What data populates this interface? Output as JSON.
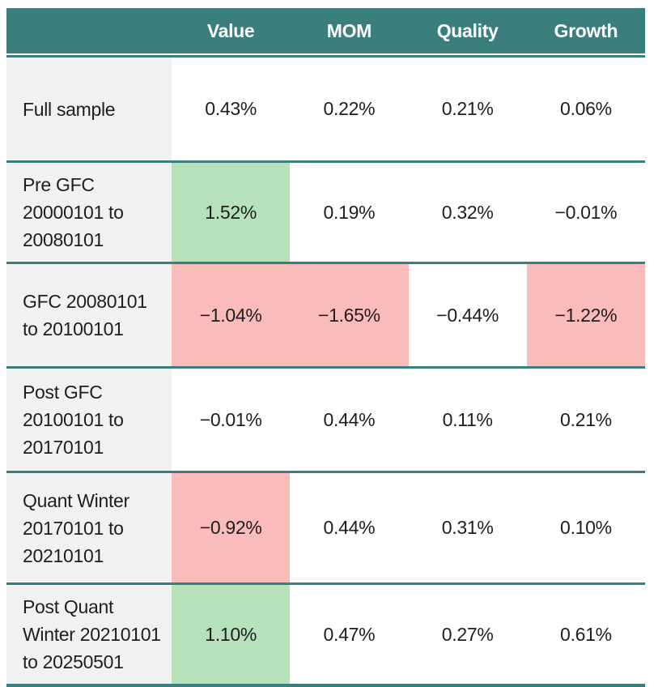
{
  "palette": {
    "header_bg": "#3A7F7D",
    "separator": "#3A7F7D",
    "positive_highlight_bg": "#B7E1BB",
    "negative_highlight_bg": "#FABBBB",
    "label_column_bg": "#F0F1F0",
    "header_text": "#FFFFFF",
    "body_text": "#1E1E1E"
  },
  "table": {
    "columns": [
      "",
      "Value",
      "MOM",
      "Quality",
      "Growth"
    ],
    "rows": [
      {
        "label": "Full sample",
        "values": [
          "0.43%",
          "0.22%",
          "0.21%",
          "0.06%"
        ],
        "cell_bgs": [
          null,
          null,
          null,
          null
        ]
      },
      {
        "label": "Pre GFC\n20000101 to\n20080101",
        "values": [
          "1.52%",
          "0.19%",
          "0.32%",
          "−0.01%"
        ],
        "cell_bgs": [
          "#B7E1BB",
          null,
          null,
          null
        ]
      },
      {
        "label": "GFC 20080101\nto 20100101",
        "values": [
          "−1.04%",
          "−1.65%",
          "−0.44%",
          "−1.22%"
        ],
        "cell_bgs": [
          "#FABBBB",
          "#FABBBB",
          null,
          "#FABBBB"
        ]
      },
      {
        "label": "Post GFC\n20100101 to\n20170101",
        "values": [
          "−0.01%",
          "0.44%",
          "0.11%",
          "0.21%"
        ],
        "cell_bgs": [
          null,
          null,
          null,
          null
        ]
      },
      {
        "label": "Quant Winter\n20170101 to\n20210101",
        "values": [
          "−0.92%",
          "0.44%",
          "0.31%",
          "0.10%"
        ],
        "cell_bgs": [
          "#FABBBB",
          null,
          null,
          null
        ]
      },
      {
        "label": "Post Quant\nWinter 20210101\nto 20250501",
        "values": [
          "1.10%",
          "0.47%",
          "0.27%",
          "0.61%"
        ],
        "cell_bgs": [
          "#B7E1BB",
          null,
          null,
          null
        ]
      }
    ]
  }
}
